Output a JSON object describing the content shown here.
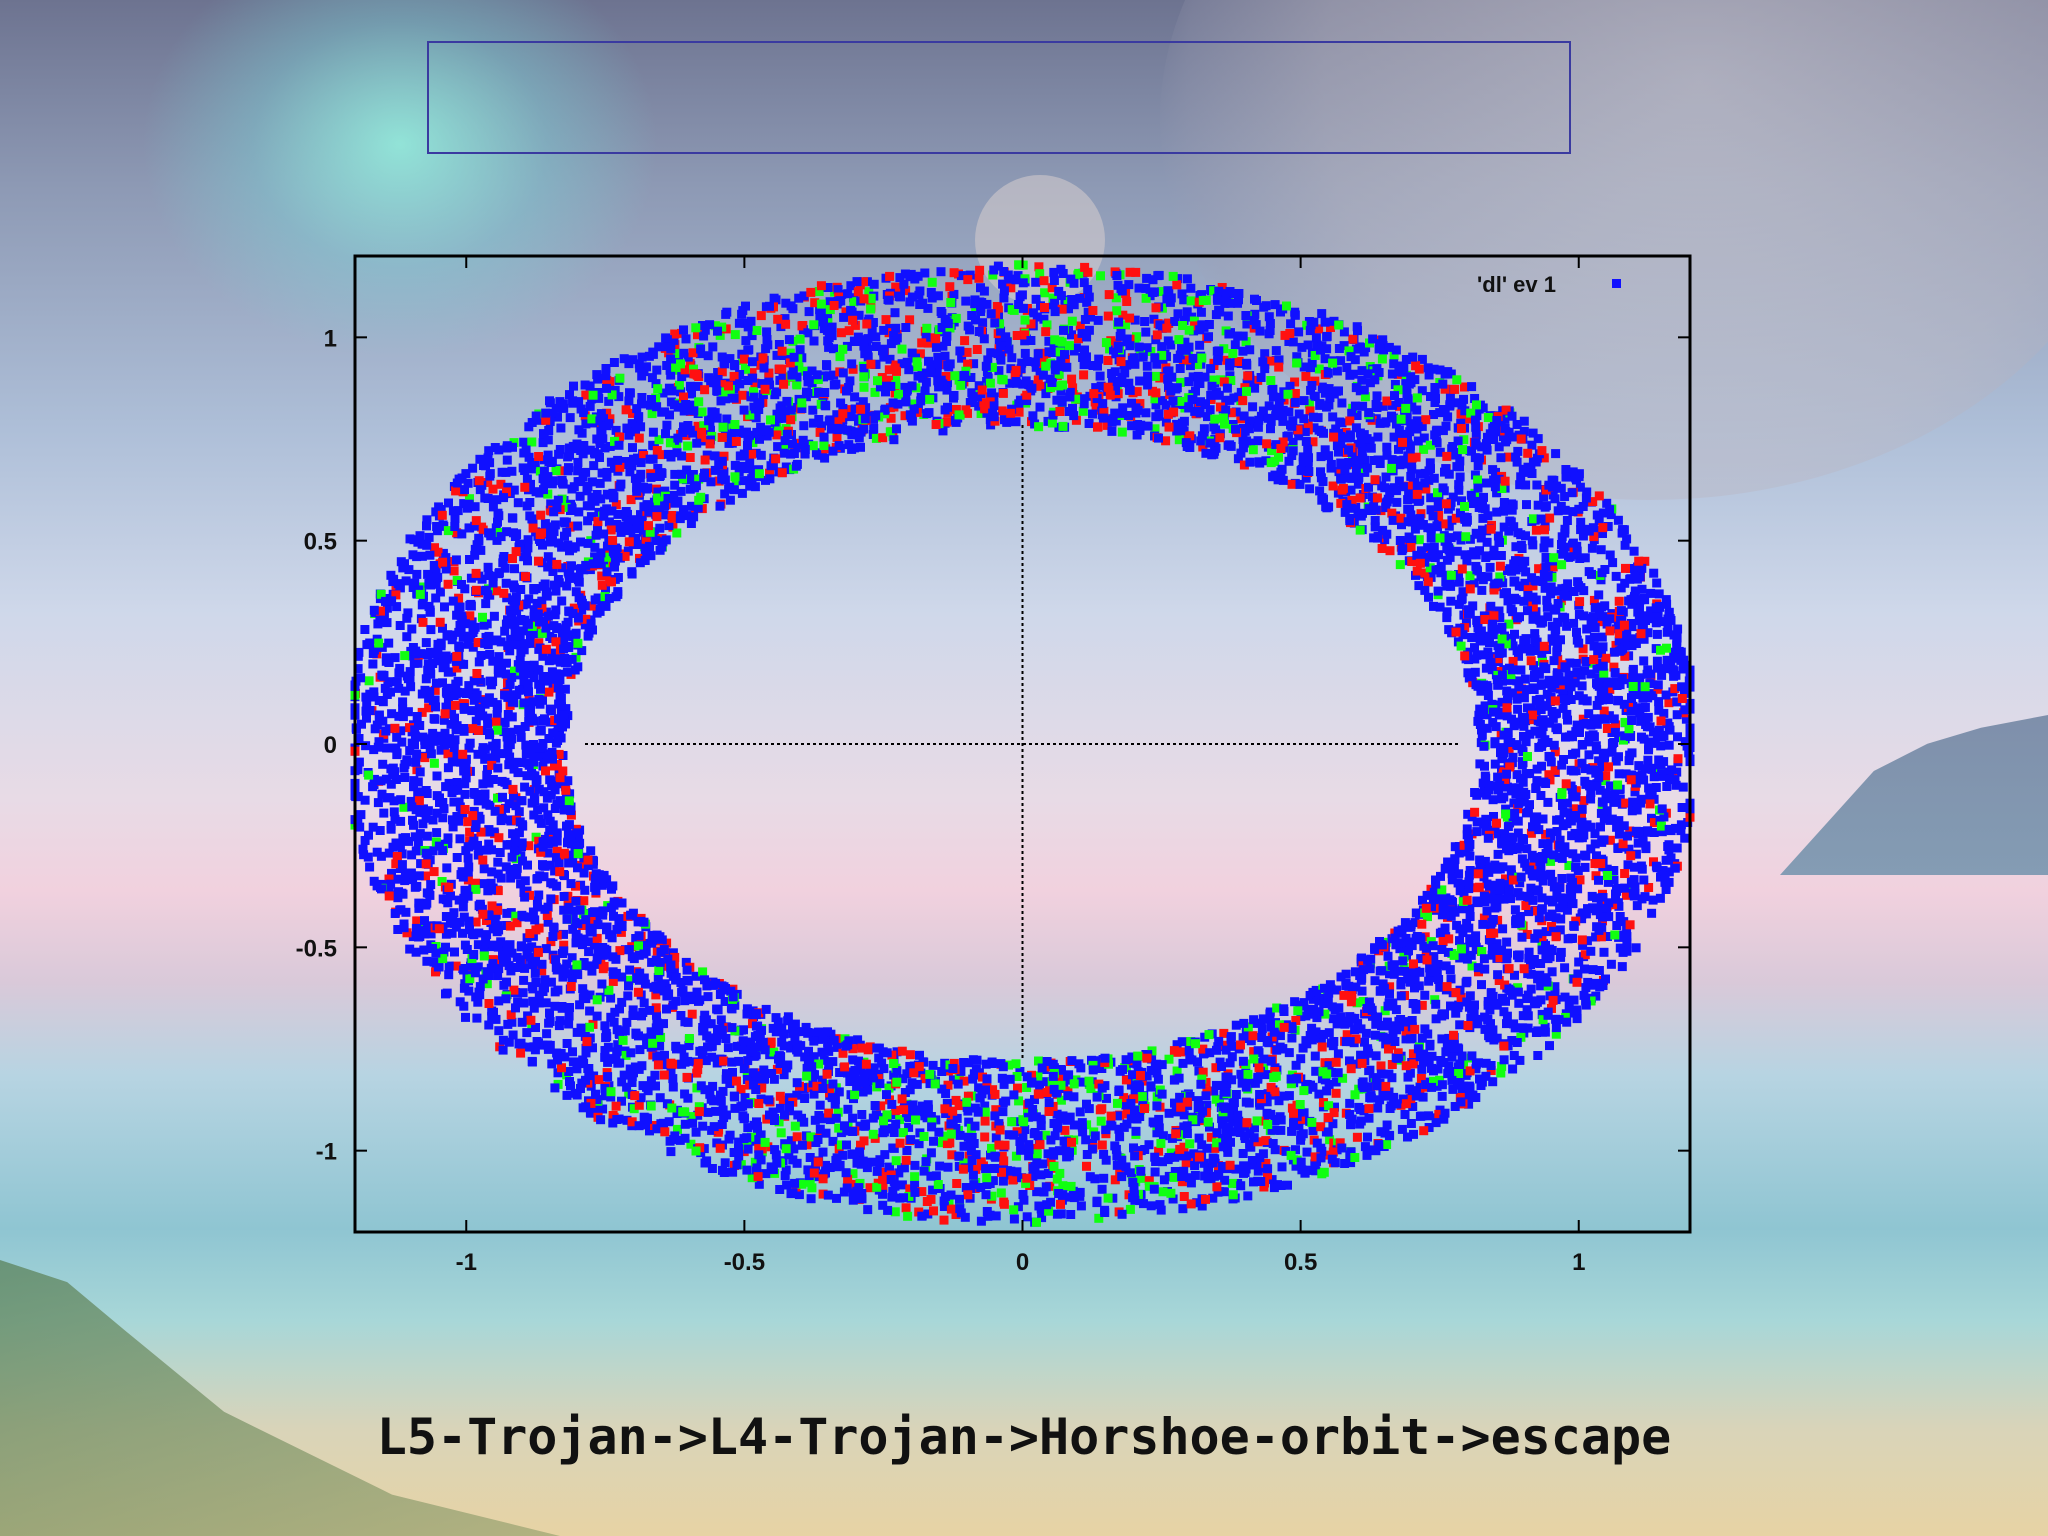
{
  "slide": {
    "caption": "L5-Trojan->L4-Trojan->Horshoe-orbit->escape",
    "title": ""
  },
  "chart_data": {
    "type": "scatter",
    "title": "",
    "xlabel": "",
    "ylabel": "",
    "xlim": [
      -1.2,
      1.2
    ],
    "ylim": [
      -1.2,
      1.2
    ],
    "x_ticks": [
      "-1",
      "-0.5",
      "0",
      "0.5",
      "1"
    ],
    "y_ticks": [
      "1",
      "0.5",
      "0",
      "-0.5",
      "-1"
    ],
    "x_tick_values": [
      -1,
      -0.5,
      0,
      0.5,
      1
    ],
    "y_tick_values": [
      1,
      0.5,
      0,
      -0.5,
      -1
    ],
    "grid": false,
    "zero_axes": true,
    "legend": {
      "placement": "top-right",
      "entries": [
        "'dl' ev 1"
      ]
    },
    "series": [
      {
        "name": "'dl' ev 1",
        "color": "#1010ff"
      },
      {
        "color": "#ff1010"
      },
      {
        "color": "#10ff10"
      }
    ],
    "ring": {
      "shape": "annulus",
      "inner_x_radius": 0.8,
      "inner_y_radius": 0.78,
      "outer_x_radius": 1.2,
      "outer_y_radius": 1.18
    },
    "marker": "filled-square"
  }
}
